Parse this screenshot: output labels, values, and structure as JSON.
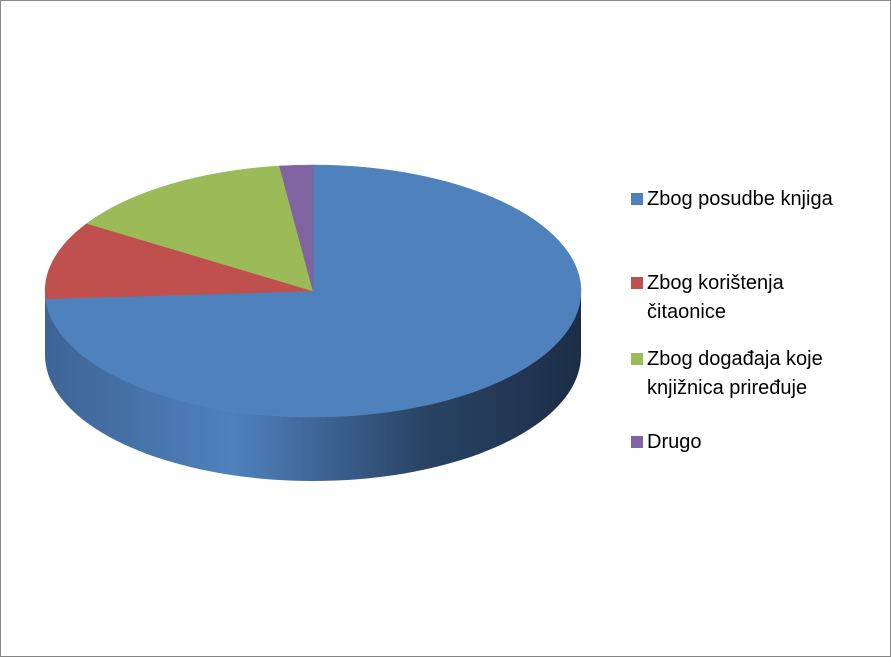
{
  "chart_data": {
    "type": "pie",
    "style": "3d",
    "title": "",
    "legend_position": "right",
    "categories": [
      "Zbog posudbe knjiga",
      "Zbog korištenja čitaonice",
      "Zbog događaja koje knjižnica priređuje",
      "Drugo"
    ],
    "values": [
      74,
      10,
      14,
      2
    ],
    "colors": [
      "#4F81BD",
      "#C0504D",
      "#9BBB59",
      "#8064A2"
    ]
  },
  "legend": {
    "items": [
      {
        "label": "Zbog posudbe knjiga",
        "color": "#4F81BD"
      },
      {
        "label": "Zbog korištenja čitaonice",
        "color": "#C0504D"
      },
      {
        "label": "Zbog događaja koje knjižnica priređuje",
        "color": "#9BBB59"
      },
      {
        "label": "Drugo",
        "color": "#8064A2"
      }
    ]
  }
}
